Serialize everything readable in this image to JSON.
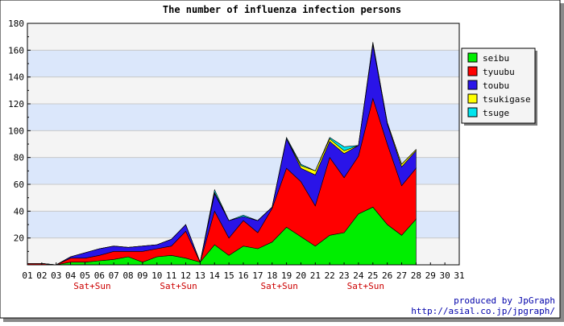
{
  "chart_data": {
    "type": "area",
    "stacked": true,
    "title": "The number of influenza infection persons",
    "categories": [
      "01",
      "02",
      "03",
      "04",
      "05",
      "06",
      "07",
      "08",
      "09",
      "10",
      "11",
      "12",
      "13",
      "14",
      "15",
      "16",
      "17",
      "18",
      "19",
      "20",
      "21",
      "22",
      "23",
      "24",
      "25",
      "26",
      "27",
      "28",
      "29",
      "30",
      "31"
    ],
    "weekend_labels": [
      {
        "category": "05",
        "label": "Sat+Sun"
      },
      {
        "category": "11",
        "label": "Sat+Sun"
      },
      {
        "category": "18",
        "label": "Sat+Sun"
      },
      {
        "category": "24",
        "label": "Sat+Sun"
      }
    ],
    "ylim": [
      0,
      180
    ],
    "yticks": [
      20,
      40,
      60,
      80,
      100,
      120,
      140,
      160,
      180
    ],
    "grid": true,
    "band_color": "#dbe7fb",
    "alt_band_color": "#f4f4f4",
    "legend_position": "right",
    "series": [
      {
        "name": "seibu",
        "color": "#00ee00",
        "values": [
          0,
          0,
          0,
          2,
          2,
          3,
          4,
          6,
          2,
          6,
          7,
          5,
          2,
          15,
          7,
          14,
          12,
          17,
          28,
          21,
          14,
          22,
          24,
          38,
          43,
          30,
          22,
          34,
          null,
          null,
          null
        ]
      },
      {
        "name": "tyuubu",
        "color": "#ff0000",
        "values": [
          1,
          1,
          0,
          3,
          3,
          4,
          6,
          4,
          8,
          6,
          7,
          20,
          0,
          25,
          13,
          19,
          12,
          25,
          44,
          41,
          30,
          58,
          41,
          43,
          81,
          60,
          37,
          38,
          null,
          null,
          null
        ]
      },
      {
        "name": "toubu",
        "color": "#2a14e8",
        "values": [
          0,
          0,
          0,
          1,
          4,
          5,
          4,
          3,
          4,
          3,
          5,
          5,
          0,
          13,
          13,
          3,
          9,
          1,
          22,
          10,
          23,
          12,
          18,
          8,
          40,
          15,
          14,
          13,
          null,
          null,
          null
        ]
      },
      {
        "name": "tsukigase",
        "color": "#ffff00",
        "values": [
          0,
          0,
          0,
          0,
          0,
          0,
          0,
          0,
          0,
          0,
          0,
          0,
          0,
          1,
          0,
          0,
          0,
          0,
          0,
          2,
          3,
          2,
          2,
          0,
          1,
          1,
          2,
          1,
          null,
          null,
          null
        ]
      },
      {
        "name": "tsuge",
        "color": "#00e5ee",
        "values": [
          0,
          0,
          0,
          0,
          0,
          0,
          0,
          0,
          0,
          0,
          0,
          0,
          0,
          2,
          0,
          1,
          0,
          0,
          1,
          1,
          0,
          1,
          3,
          0,
          1,
          0,
          0,
          0,
          null,
          null,
          null
        ]
      }
    ],
    "credit_lines": [
      "produced by JpGraph",
      "http://asial.co.jp/jpgraph/"
    ]
  }
}
